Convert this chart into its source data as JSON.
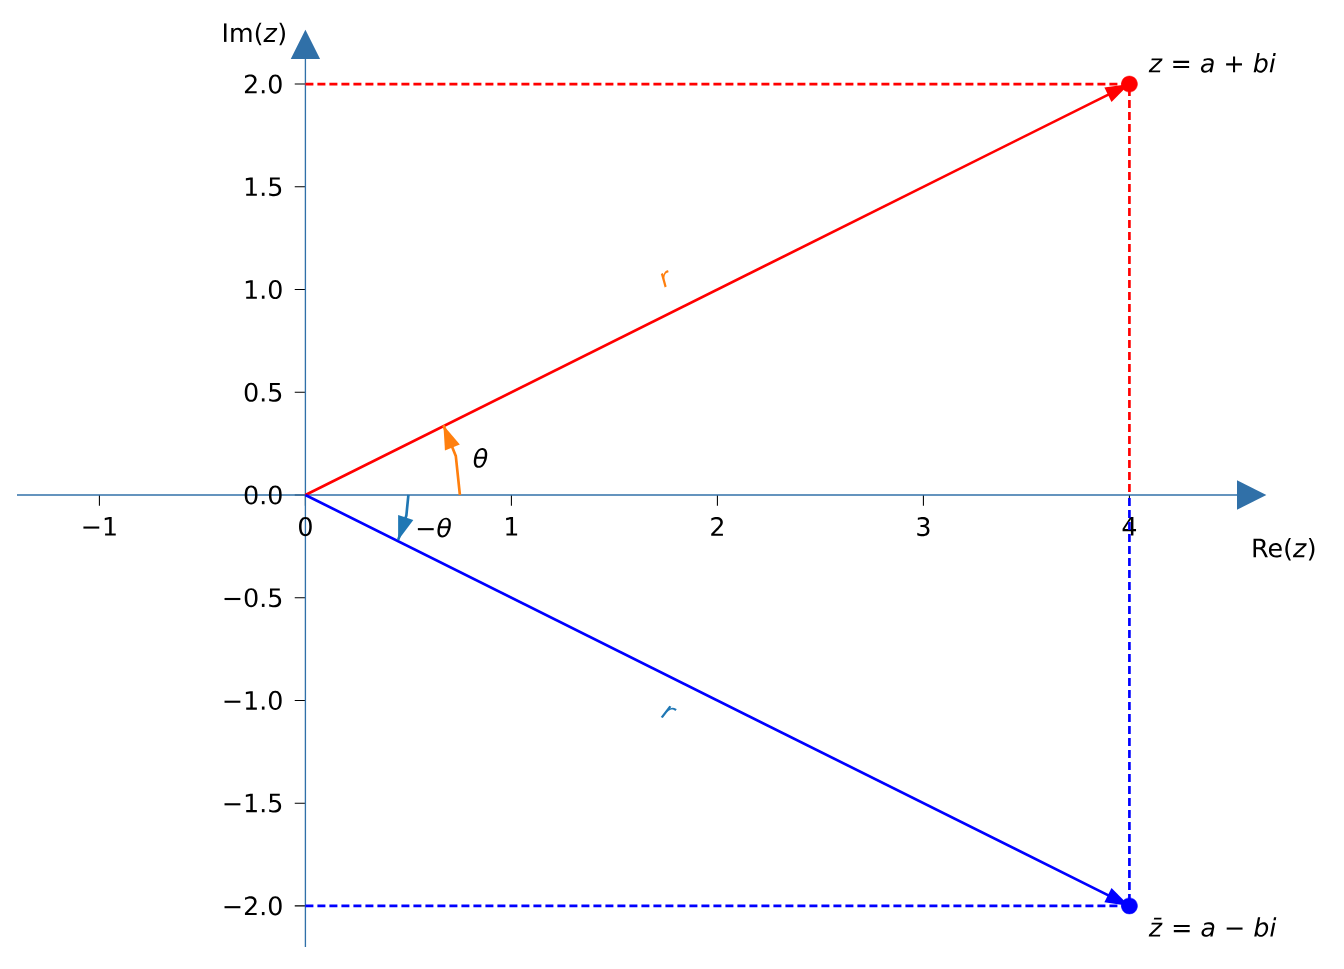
{
  "chart_data": {
    "type": "line",
    "xlabel": "Re(*z*)",
    "ylabel": "Im(*z*)",
    "xlim": [
      -1.4,
      4.6
    ],
    "ylim": [
      -2.2,
      2.2
    ],
    "xticks": [
      {
        "value": -1,
        "label": "−1"
      },
      0,
      1,
      2,
      3,
      4
    ],
    "yticks": [
      {
        "value": -2,
        "label": "−2.0"
      },
      {
        "value": -1.5,
        "label": "−1.5"
      },
      {
        "value": -1,
        "label": "−1.0"
      },
      {
        "value": -0.5,
        "label": "−0.5"
      },
      {
        "value": 0,
        "label": "0.0"
      },
      0.5,
      {
        "value": 1,
        "label": "1.0"
      },
      1.5,
      {
        "value": 2,
        "label": "2.0"
      }
    ],
    "grid": false,
    "series": [
      {
        "color": "#ff0000",
        "line_style": "dashed",
        "x": [
          0,
          4,
          4
        ],
        "values": [
          2,
          2,
          0
        ]
      },
      {
        "color": "#0000ff",
        "line_style": "dashed",
        "x": [
          0,
          4,
          4
        ],
        "values": [
          -2,
          -2,
          0
        ]
      },
      {
        "color": "#ff0000",
        "line_style": "solid",
        "x": [
          0,
          4
        ],
        "values": [
          0,
          2
        ]
      },
      {
        "color": "#0000ff",
        "line_style": "solid",
        "x": [
          0,
          4
        ],
        "values": [
          0,
          -2
        ]
      },
      {
        "color": "#ff7f0e",
        "line_style": "solid",
        "x": [
          0.75,
          0.73,
          0.67
        ],
        "values": [
          0,
          0.19,
          0.34
        ]
      },
      {
        "color": "#1f77b4",
        "line_style": "solid",
        "x": [
          0.5,
          0.49,
          0.45
        ],
        "values": [
          0,
          -0.1,
          -0.22
        ]
      },
      {
        "type": "scatter",
        "color": "#ff0000",
        "marker": "circle",
        "x": [
          4
        ],
        "values": [
          2
        ]
      },
      {
        "type": "scatter",
        "color": "#0000ff",
        "marker": "circle",
        "x": [
          4
        ],
        "values": [
          -2
        ]
      }
    ],
    "annotations": [
      {
        "text": "*z* = *a* + *bi*",
        "x": 4,
        "y": 2
      },
      {
        "text": "*z̄* = *a* − *bi*",
        "x": 4,
        "y": -2
      },
      "*θ*",
      "−*θ*",
      "*r*",
      "*r*"
    ]
  }
}
